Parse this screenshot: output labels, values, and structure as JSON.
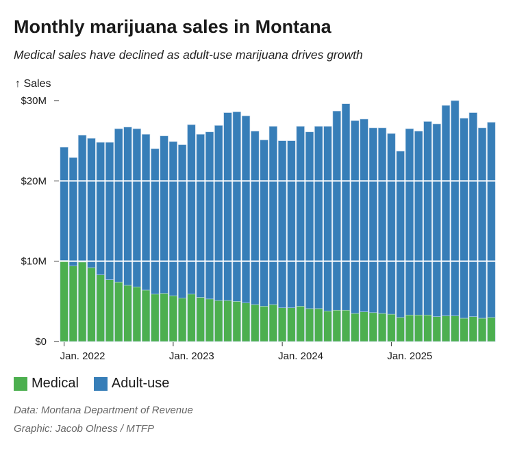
{
  "title": "Monthly marijuana sales in Montana",
  "subtitle": "Medical sales have declined as adult-use marijuana drives growth",
  "source": "Data: Montana Department of Revenue",
  "credit": "Graphic: Jacob Olness / MTFP",
  "colors": {
    "medical": "#4caf4f",
    "adult_use": "#377eb8"
  },
  "chart_data": {
    "type": "bar",
    "stacked": true,
    "ylabel": "↑ Sales",
    "ylim": [
      0,
      30
    ],
    "yunit": "$M",
    "yticks": [
      {
        "value": 0,
        "label": "$0"
      },
      {
        "value": 10,
        "label": "$10M"
      },
      {
        "value": 20,
        "label": "$20M"
      },
      {
        "value": 30,
        "label": "$30M"
      }
    ],
    "xticks": [
      {
        "category": "2022-01",
        "label": "Jan. 2022"
      },
      {
        "category": "2023-01",
        "label": "Jan. 2023"
      },
      {
        "category": "2024-01",
        "label": "Jan. 2024"
      },
      {
        "category": "2025-01",
        "label": "Jan. 2025"
      }
    ],
    "grid": true,
    "legend_position": "bottom-left",
    "categories": [
      "2022-01",
      "2022-02",
      "2022-03",
      "2022-04",
      "2022-05",
      "2022-06",
      "2022-07",
      "2022-08",
      "2022-09",
      "2022-10",
      "2022-11",
      "2022-12",
      "2023-01",
      "2023-02",
      "2023-03",
      "2023-04",
      "2023-05",
      "2023-06",
      "2023-07",
      "2023-08",
      "2023-09",
      "2023-10",
      "2023-11",
      "2023-12",
      "2024-01",
      "2024-02",
      "2024-03",
      "2024-04",
      "2024-05",
      "2024-06",
      "2024-07",
      "2024-08",
      "2024-09",
      "2024-10",
      "2024-11",
      "2024-12",
      "2025-01",
      "2025-02",
      "2025-03",
      "2025-04",
      "2025-05",
      "2025-06",
      "2025-07",
      "2025-08",
      "2025-09",
      "2025-10",
      "2025-11",
      "2025-12"
    ],
    "series": [
      {
        "name": "Medical",
        "color_key": "medical",
        "values": [
          10.1,
          9.4,
          9.9,
          9.2,
          8.3,
          7.7,
          7.4,
          7.0,
          6.8,
          6.4,
          5.9,
          6.0,
          5.7,
          5.4,
          5.9,
          5.5,
          5.3,
          5.1,
          5.1,
          5.0,
          4.8,
          4.6,
          4.4,
          4.6,
          4.2,
          4.2,
          4.4,
          4.1,
          4.1,
          3.8,
          3.9,
          3.9,
          3.5,
          3.7,
          3.6,
          3.5,
          3.4,
          3.0,
          3.3,
          3.3,
          3.3,
          3.1,
          3.2,
          3.2,
          2.9,
          3.1,
          2.9,
          3.0
        ]
      },
      {
        "name": "Adult-use",
        "color_key": "adult_use",
        "values": [
          14.1,
          13.5,
          15.8,
          16.1,
          16.5,
          17.1,
          19.1,
          19.7,
          19.7,
          19.4,
          18.1,
          19.6,
          19.2,
          19.1,
          21.1,
          20.3,
          20.8,
          21.8,
          23.4,
          23.6,
          23.3,
          21.6,
          20.7,
          22.2,
          20.8,
          20.8,
          22.4,
          22.0,
          22.7,
          23.0,
          24.8,
          25.7,
          24.0,
          24.0,
          23.0,
          23.1,
          22.5,
          20.7,
          23.2,
          22.9,
          24.1,
          24.0,
          26.2,
          26.8,
          24.9,
          25.4,
          23.7,
          24.3
        ]
      }
    ]
  }
}
